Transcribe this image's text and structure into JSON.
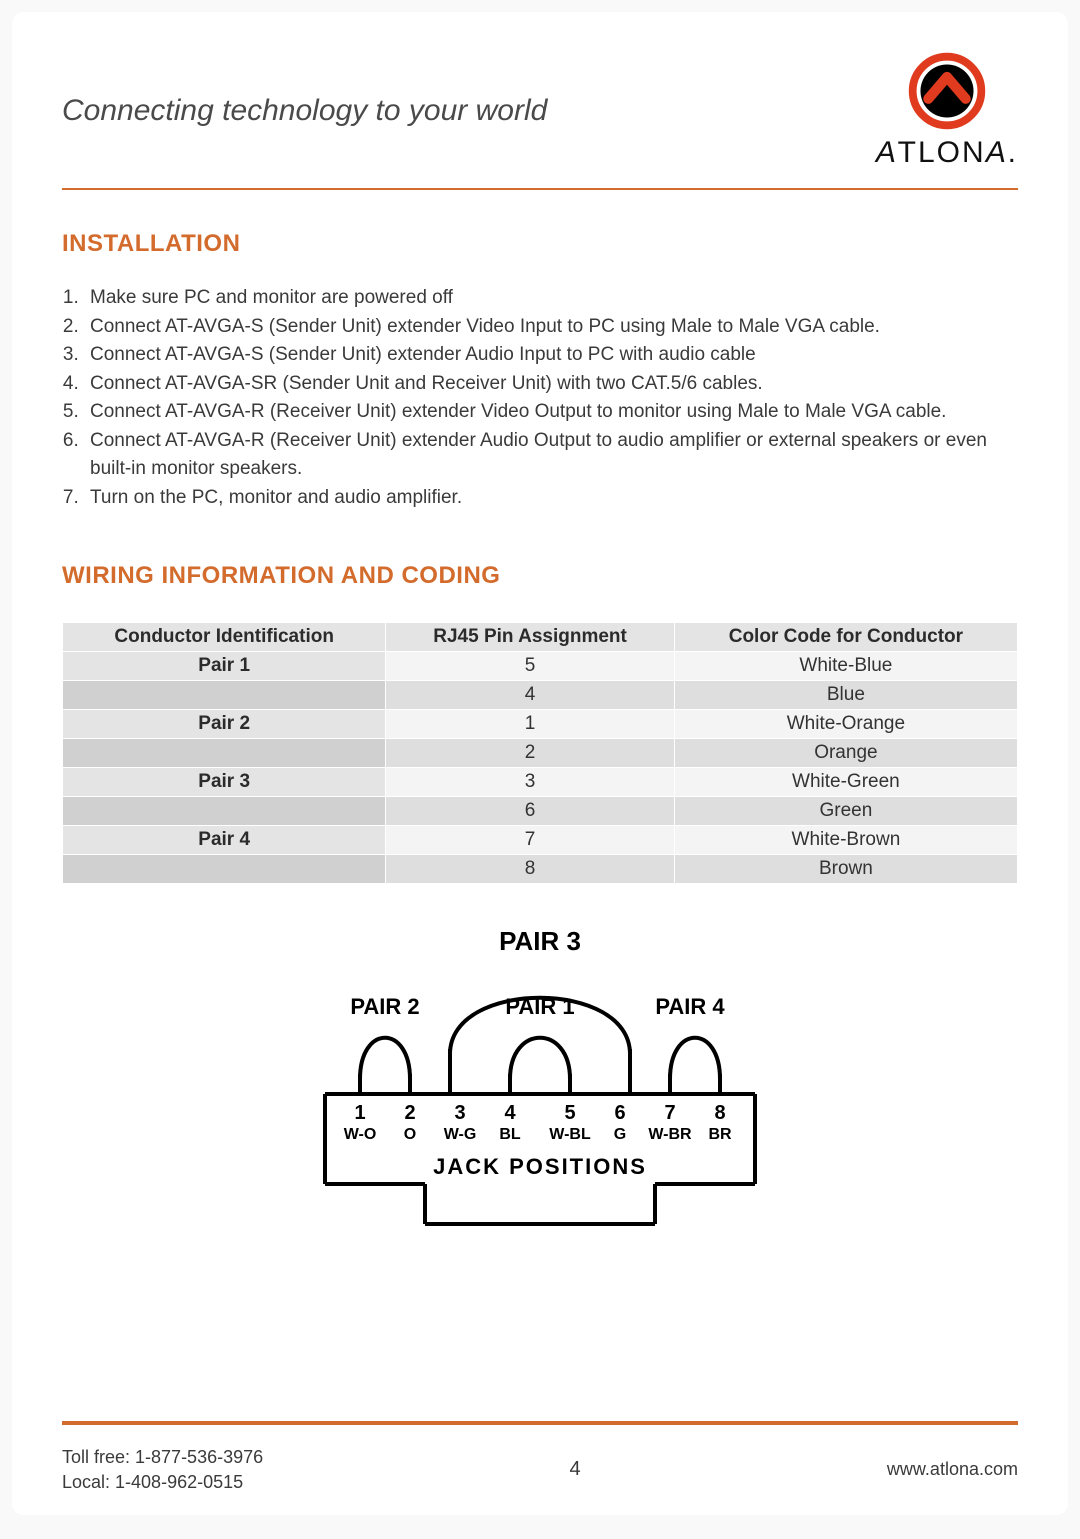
{
  "header": {
    "tagline": "Connecting technology to your world",
    "brand_name": "ATLONA",
    "logo_colors": {
      "outer_ring": "#e03a1f",
      "chevron": "#ffffff",
      "inner": "#000000"
    }
  },
  "sections": {
    "installation": {
      "title": "INSTALLATION",
      "steps": [
        "Make sure PC and monitor are powered off",
        "Connect AT-AVGA-S (Sender Unit) extender Video Input to PC using Male to Male VGA cable.",
        "Connect AT-AVGA-S (Sender Unit) extender Audio Input to PC with audio cable",
        "Connect AT-AVGA-SR (Sender Unit and Receiver Unit) with two CAT.5/6 cables.",
        "Connect AT-AVGA-R (Receiver Unit) extender Video Output to monitor using Male to Male VGA cable.",
        "Connect AT-AVGA-R (Receiver Unit) extender Audio Output to audio amplifier or external speakers or even built-in monitor speakers.",
        "Turn on the PC, monitor and audio amplifier."
      ]
    },
    "wiring": {
      "title": "WIRING INFORMATION AND CODING",
      "table": {
        "type": "table",
        "columns": [
          "Conductor Identification",
          "RJ45 Pin Assignment",
          "Color Code for Conductor"
        ],
        "rows": [
          {
            "pair": "Pair 1",
            "pin": "5",
            "color": "White-Blue",
            "shade": "light"
          },
          {
            "pair": "",
            "pin": "4",
            "color": "Blue",
            "shade": "dark"
          },
          {
            "pair": "Pair 2",
            "pin": "1",
            "color": "White-Orange",
            "shade": "light"
          },
          {
            "pair": "",
            "pin": "2",
            "color": "Orange",
            "shade": "dark"
          },
          {
            "pair": "Pair 3",
            "pin": "3",
            "color": "White-Green",
            "shade": "light"
          },
          {
            "pair": "",
            "pin": "6",
            "color": "Green",
            "shade": "dark"
          },
          {
            "pair": "Pair 4",
            "pin": "7",
            "color": "White-Brown",
            "shade": "light"
          },
          {
            "pair": "",
            "pin": "8",
            "color": "Brown",
            "shade": "dark"
          }
        ],
        "header_bg": "#e4e4e4",
        "row_light_bg": "#f4f4f4",
        "row_dark_bg": "#dedede",
        "border_color": "#ffffff",
        "font_size": 19
      },
      "diagram": {
        "type": "diagram",
        "top_label": "PAIR 3",
        "pair_labels": [
          "PAIR 2",
          "PAIR 1",
          "PAIR 4"
        ],
        "jack_title": "JACK  POSITIONS",
        "pins": [
          {
            "num": "1",
            "code": "W-O"
          },
          {
            "num": "2",
            "code": "O"
          },
          {
            "num": "3",
            "code": "W-G"
          },
          {
            "num": "4",
            "code": "BL"
          },
          {
            "num": "5",
            "code": "W-BL"
          },
          {
            "num": "6",
            "code": "G"
          },
          {
            "num": "7",
            "code": "W-BR"
          },
          {
            "num": "8",
            "code": "BR"
          }
        ],
        "stroke": "#000000",
        "font_family": "Arial",
        "title_fontsize": 26,
        "label_fontsize": 22,
        "pin_fontsize": 18
      }
    }
  },
  "footer": {
    "toll_free_label": "Toll free: 1-877-536-3976",
    "local_label": "Local: 1-408-962-0515",
    "page_number": "4",
    "url": "www.atlona.com",
    "rule_color": "#d36b2c"
  },
  "palette": {
    "accent": "#d36b2c",
    "text": "#3a3a3a",
    "page_bg": "#ffffff",
    "body_bg": "#f9f9fa"
  }
}
